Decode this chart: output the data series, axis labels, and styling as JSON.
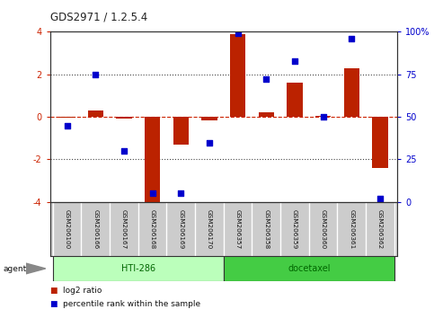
{
  "title": "GDS2971 / 1.2.5.4",
  "samples": [
    "GSM206100",
    "GSM206166",
    "GSM206167",
    "GSM206168",
    "GSM206169",
    "GSM206170",
    "GSM206357",
    "GSM206358",
    "GSM206359",
    "GSM206360",
    "GSM206361",
    "GSM206362"
  ],
  "log2_ratio": [
    -0.05,
    0.3,
    -0.1,
    -4.1,
    -1.3,
    -0.15,
    3.9,
    0.2,
    1.6,
    0.05,
    2.3,
    -2.4
  ],
  "percentile": [
    45,
    75,
    30,
    5,
    5,
    35,
    99,
    72,
    83,
    50,
    96,
    2
  ],
  "bar_color": "#bb2200",
  "dot_color": "#0000cc",
  "dashed_line_color": "#cc2200",
  "dotted_line_color": "#444444",
  "left_tick_color": "#cc2200",
  "right_tick_color": "#0000cc",
  "ylim": [
    -4,
    4
  ],
  "yticks_left": [
    -4,
    -2,
    0,
    2,
    4
  ],
  "yticks_right_vals": [
    -4,
    -2,
    0,
    2,
    4
  ],
  "yticks_right_labels": [
    "0",
    "25",
    "50",
    "75",
    "100%"
  ],
  "groups": [
    {
      "label": "HTI-286",
      "start": 0,
      "end": 5,
      "color": "#bbffbb"
    },
    {
      "label": "docetaxel",
      "start": 6,
      "end": 11,
      "color": "#44cc44"
    }
  ],
  "legend_items": [
    {
      "color": "#bb2200",
      "label": "log2 ratio"
    },
    {
      "color": "#0000cc",
      "label": "percentile rank within the sample"
    }
  ],
  "agent_label": "agent",
  "background_color": "#ffffff",
  "plot_bg_color": "#ffffff",
  "label_bg_color": "#cccccc",
  "label_border_color": "#ffffff"
}
